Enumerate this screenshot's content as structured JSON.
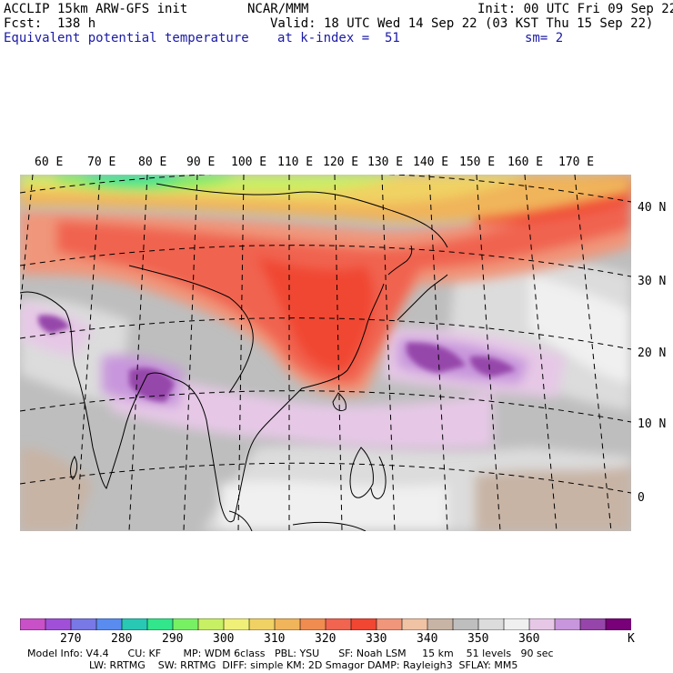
{
  "header": {
    "model": "ACCLIP 15km ARW-GFS init",
    "org": "NCAR/MMM",
    "init": "Init: 00 UTC Fri 09 Sep 22",
    "fcst": "Fcst:  138 h",
    "valid": "Valid: 18 UTC Wed 14 Sep 22 (03 KST Thu 15 Sep 22)",
    "field": "Equivalent potential temperature",
    "level": "at k-index =  51",
    "smooth": "sm= 2"
  },
  "map": {
    "lon_labels": [
      "60 E",
      "70 E",
      "80 E",
      "90 E",
      "100 E",
      "110 E",
      "120 E",
      "130 E",
      "140 E",
      "150 E",
      "160 E",
      "170 E"
    ],
    "lat_labels": [
      "40 N",
      "30 N",
      "20 N",
      "10 N",
      "0"
    ]
  },
  "colorbar": {
    "unit": "K",
    "tick_labels": [
      "270",
      "280",
      "290",
      "300",
      "310",
      "320",
      "330",
      "340",
      "350",
      "360"
    ],
    "colors": [
      "#c851c8",
      "#a050d8",
      "#7878e6",
      "#5a8cf0",
      "#28c8b4",
      "#32e68c",
      "#78f064",
      "#c8f064",
      "#f0f078",
      "#f0d264",
      "#f0b45a",
      "#f08c50",
      "#f06450",
      "#f04632",
      "#f0967a",
      "#f0c3a5",
      "#c8b4a5",
      "#bebebe",
      "#dcdcdc",
      "#f0f0f0",
      "#e6c8e6",
      "#c896dc",
      "#9646aa",
      "#780078"
    ]
  },
  "model_info": {
    "line1": "Model Info: V4.4      CU: KF       MP: WDM 6class   PBL: YSU      SF: Noah LSM     15 km    51 levels   90 sec",
    "line2": "LW: RRTMG    SW: RRTMG  DIFF: simple KM: 2D Smagor DAMP: Rayleigh3  SFLAY: MM5"
  }
}
